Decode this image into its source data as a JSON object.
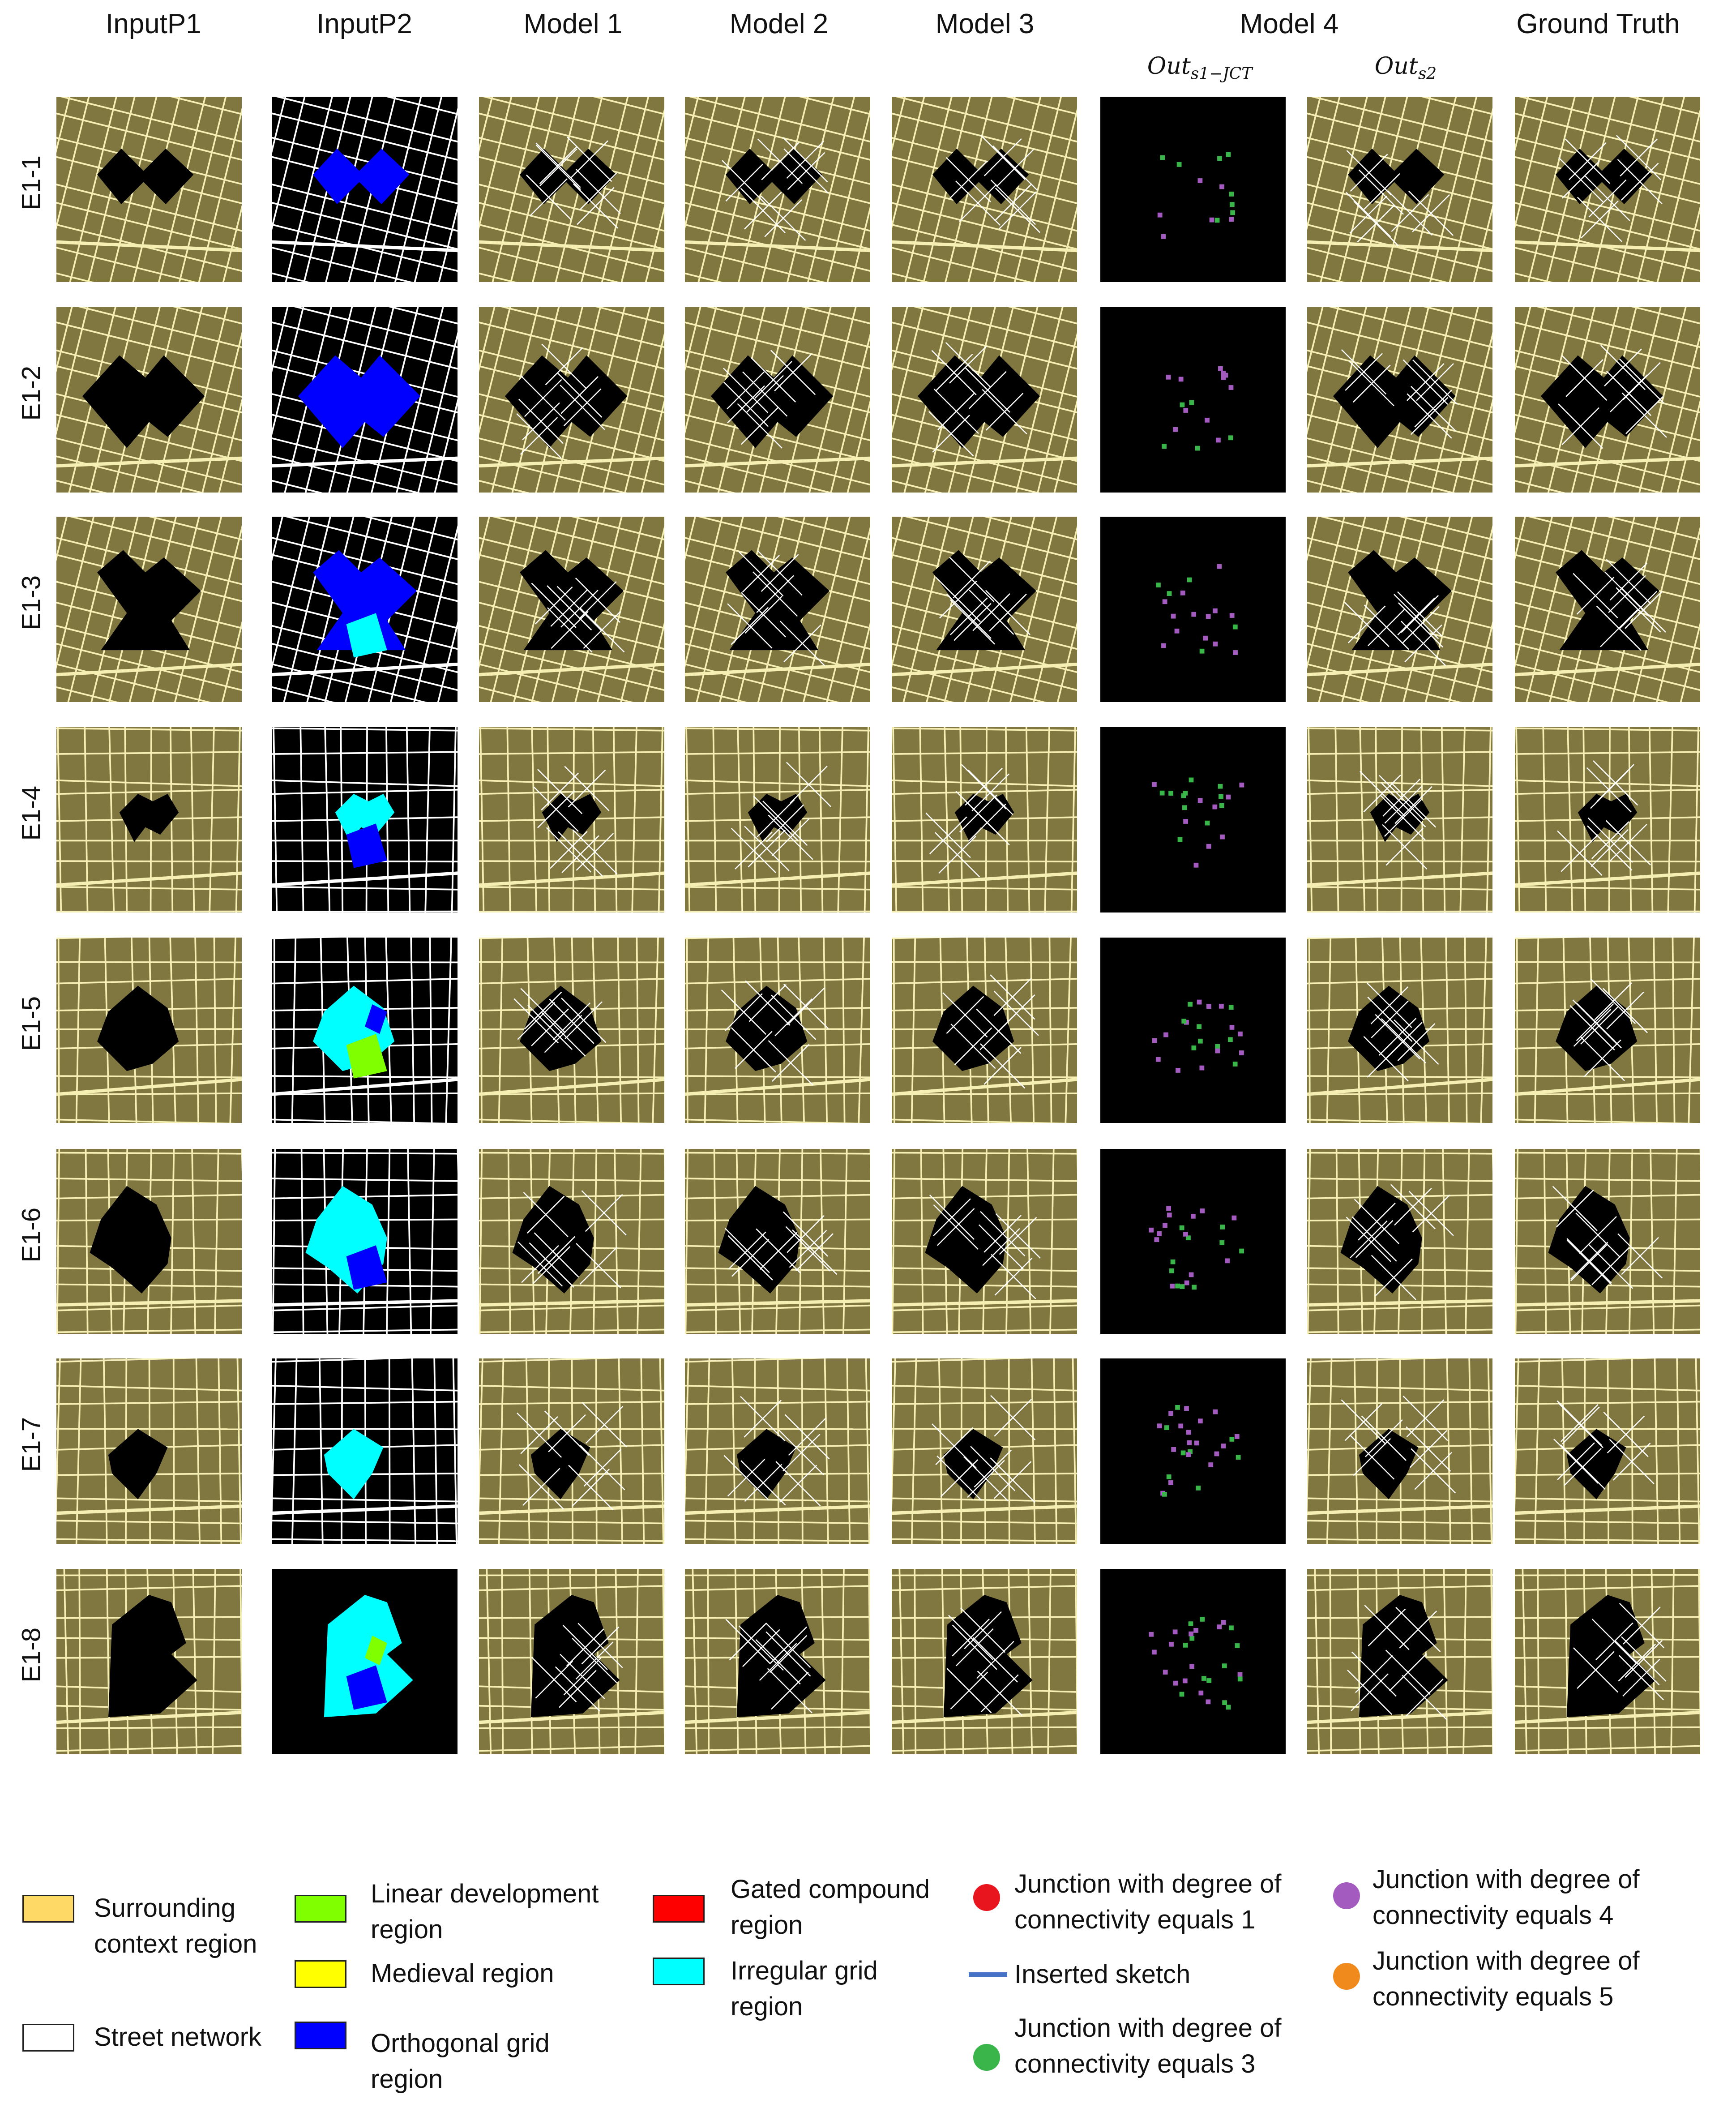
{
  "columns": [
    {
      "name": "InputP1",
      "kind": "p1"
    },
    {
      "name": "InputP2",
      "kind": "p2"
    },
    {
      "name": "Model 1",
      "kind": "model"
    },
    {
      "name": "Model 2",
      "kind": "model"
    },
    {
      "name": "Model 3",
      "kind": "model"
    },
    {
      "name": "",
      "kind": "jct"
    },
    {
      "name": "",
      "kind": "model"
    },
    {
      "name": "Ground Truth",
      "kind": "model"
    }
  ],
  "model4_header": "Model 4",
  "model4_subheaders": {
    "jct": {
      "base": "Out",
      "sub": "s1−JCT"
    },
    "s2": {
      "base": "Out",
      "sub": "s2"
    }
  },
  "rows": [
    "E1-1",
    "E1-2",
    "E1-3",
    "E1-4",
    "E1-5",
    "E1-6",
    "E1-7",
    "E1-8"
  ],
  "colors": {
    "context": "#7f7640",
    "street": "#f5efb4",
    "site": "#000000",
    "orthogonal": "#0000ff",
    "irregular": "#00ffff",
    "linear": "#80ff00",
    "medieval": "#ffff00",
    "gated": "#ff0000",
    "surrounding_swatch": "#ffd966",
    "junction1": "#e8141e",
    "junction3": "#39b54a",
    "junction4": "#a35bbf",
    "junction5": "#f08a1c",
    "sketch": "#4472c4"
  },
  "legend": {
    "surrounding": "Surrounding context region",
    "street": "Street network",
    "linear": "Linear development region",
    "medieval": "Medieval region",
    "orthogonal": "Orthogonal grid region",
    "gated": "Gated compound region",
    "irregular": "Irregular grid region",
    "junction1": "Junction with degree of connectivity equals 1",
    "sketch": "Inserted sketch",
    "junction3": "Junction with degree of connectivity equals 3",
    "junction4": "Junction with degree of connectivity equals 4",
    "junction5": "Junction with degree of connectivity equals 5"
  }
}
